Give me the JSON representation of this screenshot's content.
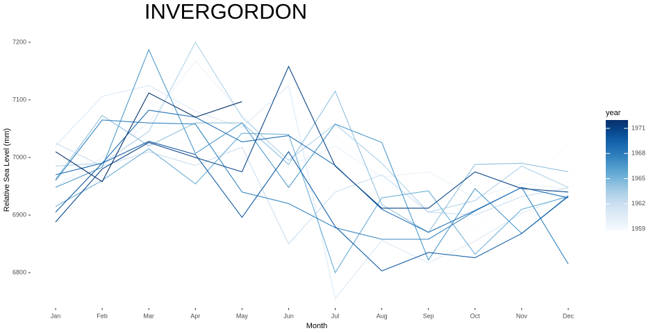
{
  "chart_data": {
    "type": "line",
    "title": "INVERGORDON",
    "x_label": "Month",
    "y_label": "Relative Sea Level (mm)",
    "categories": [
      "Jan",
      "Feb",
      "Mar",
      "Apr",
      "May",
      "Jun",
      "Jul",
      "Aug",
      "Sep",
      "Oct",
      "Nov",
      "Dec"
    ],
    "ylim": [
      6735,
      7230
    ],
    "yticks": [
      6800,
      6900,
      7000,
      7100,
      7200
    ],
    "grid": false,
    "legend": {
      "title": "year",
      "position": "right",
      "lim": [
        1959,
        1971
      ],
      "ticks": [
        1959,
        1962,
        1965,
        1968,
        1971
      ]
    },
    "series": [
      {
        "color": "#f7fbff",
        "values": [
          6948,
          7000,
          7040,
          7020,
          7050,
          7000,
          7040,
          6960,
          6915,
          6875,
          6950,
          7022
        ]
      },
      {
        "color": "#e9f2fa",
        "values": [
          6950,
          7000,
          7060,
          7168,
          7075,
          6985,
          7020,
          6966,
          6975,
          6930,
          6955,
          6945
        ]
      },
      {
        "color": "#dbe9f6",
        "values": [
          7020,
          7106,
          7125,
          7080,
          7052,
          7125,
          6755,
          6856,
          6817,
          6855,
          6903,
          6935
        ]
      },
      {
        "color": "#cadef0",
        "values": [
          7025,
          6985,
          7010,
          6986,
          7018,
          6850,
          6940,
          6970,
          6905,
          6900,
          6932,
          6947
        ]
      },
      {
        "color": "#b0d2e8",
        "values": [
          6985,
          6990,
          7045,
          7200,
          7070,
          6995,
          7058,
          6990,
          6905,
          6925,
          6985,
          6948
        ]
      },
      {
        "color": "#90c1df",
        "values": [
          6962,
          7073,
          7020,
          7060,
          7060,
          6988,
          7115,
          6918,
          6870,
          6988,
          6990,
          6975
        ]
      },
      {
        "color": "#6aaed6",
        "values": [
          6915,
          6960,
          7015,
          6954,
          7042,
          7040,
          6800,
          6930,
          6942,
          6832,
          6910,
          6932
        ]
      },
      {
        "color": "#4e9acb",
        "values": [
          6948,
          6983,
          7187,
          7007,
          7060,
          6948,
          7058,
          7026,
          6822,
          6946,
          6868,
          6932
        ]
      },
      {
        "color": "#3383be",
        "values": [
          6960,
          7065,
          7060,
          7058,
          6940,
          6920,
          6878,
          6858,
          6858,
          6907,
          6948,
          6815
        ]
      },
      {
        "color": "#1f6eb3",
        "values": [
          6970,
          6990,
          7082,
          7070,
          7027,
          7038,
          6986,
          6910,
          6870,
          6908,
          6948,
          6930
        ]
      },
      {
        "color": "#0f5aa3",
        "values": [
          6905,
          6990,
          7028,
          7005,
          6896,
          7010,
          6880,
          6803,
          6835,
          6826,
          6868,
          6933
        ]
      },
      {
        "color": "#084387",
        "values": [
          6888,
          6980,
          7026,
          7000,
          6975,
          7158,
          6985,
          6912,
          6912,
          6975,
          6946,
          6940
        ]
      },
      {
        "color": "#08306b",
        "values": [
          7010,
          6958,
          7112,
          7070,
          7097,
          null,
          null,
          null,
          null,
          null,
          null,
          null
        ]
      }
    ]
  }
}
